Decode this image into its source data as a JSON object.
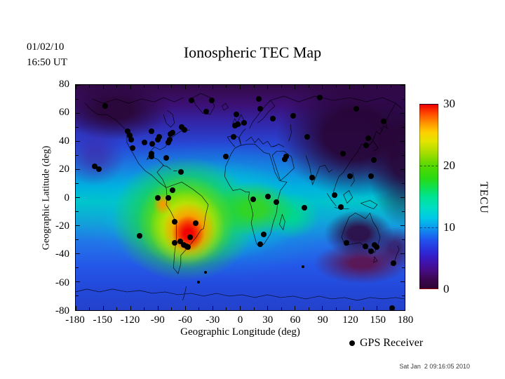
{
  "annotations": {
    "date": "01/02/10",
    "time": "16:50 UT"
  },
  "footer": {
    "generated": "Sat Jan  2 09:16:05 2010"
  },
  "chart_data": {
    "type": "heatmap",
    "title": "Ionospheric TEC Map",
    "xlabel": "Geographic Longitude (deg)",
    "ylabel": "Geographic Latitude (deg)",
    "xlim": [
      -180,
      180
    ],
    "ylim": [
      -80,
      80
    ],
    "xticks": [
      -180,
      -150,
      -120,
      -90,
      -60,
      -30,
      0,
      30,
      60,
      90,
      120,
      150,
      180
    ],
    "yticks": [
      80,
      60,
      40,
      20,
      0,
      -20,
      -40,
      -60,
      -80
    ],
    "grid": false,
    "legend": {
      "marker": "black-dot",
      "label": "GPS Receiver",
      "position": "below-right"
    },
    "colorbar": {
      "label": "TECU",
      "min": 0,
      "max": 30,
      "ticks": [
        0,
        10,
        20,
        30
      ],
      "gradient": [
        {
          "v": 0,
          "c": "#2e0535"
        },
        {
          "v": 1.5,
          "c": "#3b0750"
        },
        {
          "v": 3,
          "c": "#460c86"
        },
        {
          "v": 4.5,
          "c": "#3d14b4"
        },
        {
          "v": 6,
          "c": "#2c2ad8"
        },
        {
          "v": 8,
          "c": "#1f55ee"
        },
        {
          "v": 10,
          "c": "#0b9cee"
        },
        {
          "v": 11.5,
          "c": "#00c8e6"
        },
        {
          "v": 13,
          "c": "#00dcc8"
        },
        {
          "v": 15,
          "c": "#00e392"
        },
        {
          "v": 16.5,
          "c": "#0ee04e"
        },
        {
          "v": 18,
          "c": "#2ada12"
        },
        {
          "v": 20,
          "c": "#55d800"
        },
        {
          "v": 22,
          "c": "#a2dc00"
        },
        {
          "v": 24,
          "c": "#e4e400"
        },
        {
          "v": 25.5,
          "c": "#ffcf00"
        },
        {
          "v": 27,
          "c": "#ff9300"
        },
        {
          "v": 28.5,
          "c": "#ff4a00"
        },
        {
          "v": 30,
          "c": "#ef0000"
        }
      ]
    },
    "tec_features": [
      {
        "region": "equatorial-anomaly peak over southern South America",
        "lon": -57,
        "lat": -26,
        "tecu": 30
      },
      {
        "region": "secondary enhancement west of Peru",
        "lon": -85,
        "lat": -5,
        "tecu": 26
      },
      {
        "region": "dayside equatorial band Americas-Africa",
        "lon": -20,
        "lat": -8,
        "tecu": 20
      },
      {
        "region": "Indian Ocean equatorial band",
        "lon": 55,
        "lat": -12,
        "tecu": 16
      },
      {
        "region": "mid-latitude North Atlantic / Europe",
        "lon": -30,
        "lat": 45,
        "tecu": 10
      },
      {
        "region": "night-side East Asia / western Pacific",
        "lon": 135,
        "lat": 40,
        "tecu": 3
      },
      {
        "region": "high northern latitudes / Alaska sector",
        "lon": -130,
        "lat": 65,
        "tecu": 2
      },
      {
        "region": "trough south of Australia",
        "lon": 135,
        "lat": -48,
        "tecu": 4
      },
      {
        "region": "southern ocean / Antarctic coast",
        "lon": 0,
        "lat": -70,
        "tecu": 9
      }
    ],
    "gps_receivers": [
      [
        -148,
        65
      ],
      [
        -53,
        69
      ],
      [
        -37,
        61
      ],
      [
        -31,
        69
      ],
      [
        -123,
        47
      ],
      [
        -121,
        44
      ],
      [
        -97,
        47
      ],
      [
        -76,
        45
      ],
      [
        -74,
        46
      ],
      [
        -64,
        50
      ],
      [
        -61,
        48
      ],
      [
        -119,
        41
      ],
      [
        -118,
        35
      ],
      [
        -105,
        39
      ],
      [
        -96,
        38
      ],
      [
        -90,
        41
      ],
      [
        -89,
        43
      ],
      [
        -77,
        41
      ],
      [
        -79,
        39
      ],
      [
        -97,
        31
      ],
      [
        -97,
        29
      ],
      [
        -81,
        28
      ],
      [
        -159,
        22
      ],
      [
        -155,
        20
      ],
      [
        -65,
        18
      ],
      [
        -74,
        5
      ],
      [
        -90,
        0
      ],
      [
        -79,
        0
      ],
      [
        -72,
        -17
      ],
      [
        -49,
        -18
      ],
      [
        -55,
        -28
      ],
      [
        -71.5,
        -32
      ],
      [
        -66,
        -31
      ],
      [
        -62,
        -33.5
      ],
      [
        -59,
        -34.5
      ],
      [
        -57,
        -35
      ],
      [
        -110,
        -27
      ],
      [
        -38,
        -53,
        1
      ],
      [
        -46,
        -60,
        1
      ],
      [
        14,
        -1
      ],
      [
        30,
        0.5
      ],
      [
        39.5,
        -3.3
      ],
      [
        26,
        -26
      ],
      [
        22,
        -33
      ],
      [
        70,
        -7
      ],
      [
        68.5,
        -49,
        1
      ],
      [
        -7,
        43
      ],
      [
        -16,
        29
      ],
      [
        -4,
        59
      ],
      [
        -3,
        52
      ],
      [
        -6,
        51
      ],
      [
        4,
        53
      ],
      [
        20,
        70
      ],
      [
        22,
        63
      ],
      [
        36,
        56
      ],
      [
        58,
        58
      ],
      [
        87,
        71
      ],
      [
        127,
        63
      ],
      [
        157,
        54
      ],
      [
        73,
        43
      ],
      [
        140,
        42
      ],
      [
        137.5,
        37
      ],
      [
        112.5,
        31
      ],
      [
        49,
        27
      ],
      [
        50,
        29
      ],
      [
        79,
        14
      ],
      [
        120,
        15
      ],
      [
        143,
        15
      ],
      [
        146,
        26.5
      ],
      [
        103,
        1.5
      ],
      [
        110,
        -6.5
      ],
      [
        116,
        -32
      ],
      [
        137,
        -34.5
      ],
      [
        143,
        -38
      ],
      [
        147,
        -33.5
      ],
      [
        149,
        -35
      ],
      [
        168,
        -46.5
      ],
      [
        166,
        -78.5
      ]
    ]
  }
}
